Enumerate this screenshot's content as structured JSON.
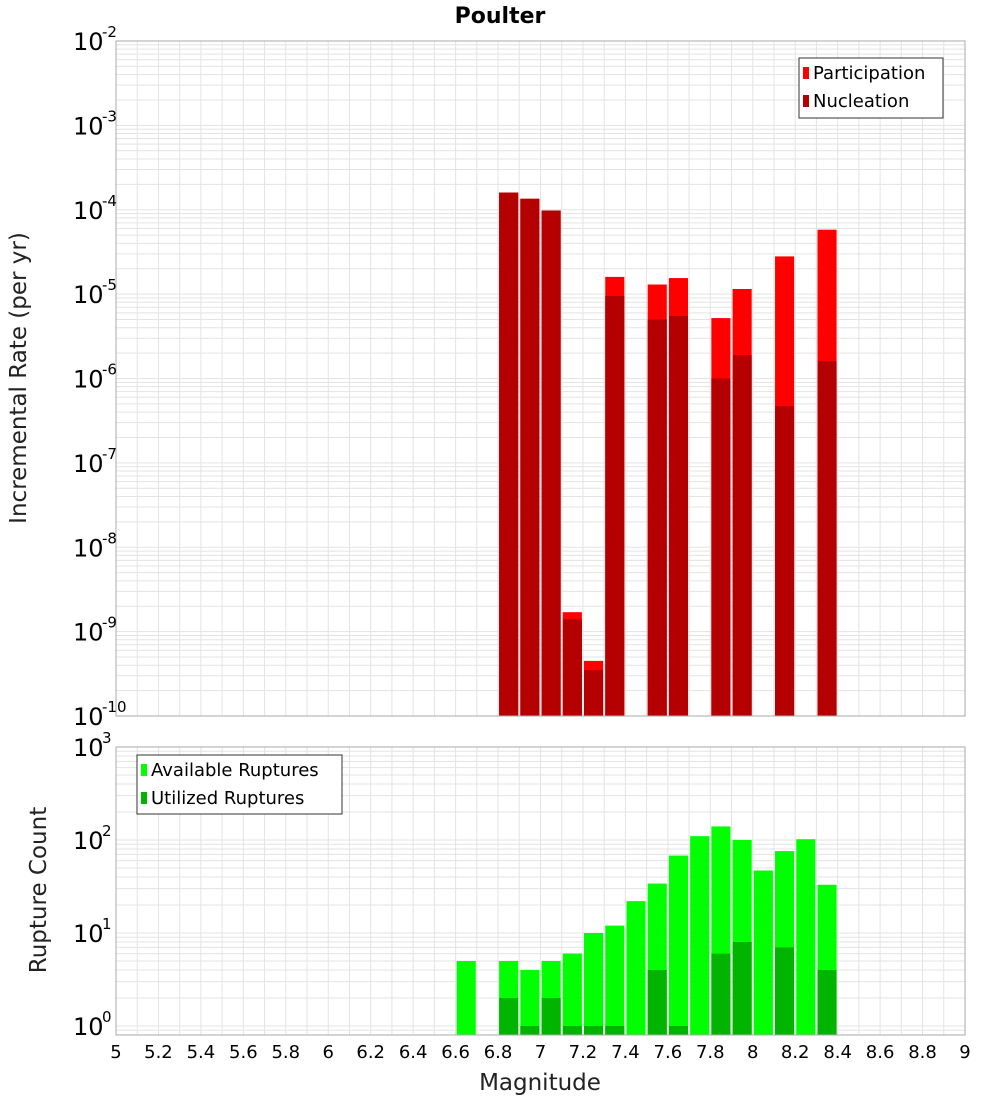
{
  "chart_data": [
    {
      "type": "bar",
      "title": "Poulter",
      "xlabel": "",
      "ylabel": "Incremental Rate (per yr)",
      "yscale": "log",
      "ylim": [
        1e-10,
        0.01
      ],
      "xlim": [
        5,
        9
      ],
      "grid": true,
      "legend_position": "top-right",
      "x": [
        6.85,
        6.95,
        7.05,
        7.15,
        7.25,
        7.35,
        7.55,
        7.65,
        7.85,
        7.95,
        8.15,
        8.35
      ],
      "series": [
        {
          "name": "Participation",
          "color": "#ff0000",
          "values": [
            0.00016,
            0.000135,
            9.8e-05,
            1.7e-09,
            4.5e-10,
            1.6e-05,
            1.3e-05,
            1.55e-05,
            5.2e-06,
            1.15e-05,
            2.8e-05,
            5.8e-05
          ]
        },
        {
          "name": "Nucleation",
          "color": "#b40000",
          "values": [
            0.00016,
            0.000135,
            9.8e-05,
            1.4e-09,
            3.5e-10,
            9.5e-06,
            5e-06,
            5.5e-06,
            1e-06,
            1.9e-06,
            4.7e-07,
            1.6e-06
          ]
        }
      ],
      "y_ticks": [
        {
          "base": "10",
          "exp": "-2",
          "value": 0.01
        },
        {
          "base": "10",
          "exp": "-3",
          "value": 0.001
        },
        {
          "base": "10",
          "exp": "-4",
          "value": 0.0001
        },
        {
          "base": "10",
          "exp": "-5",
          "value": 1e-05
        },
        {
          "base": "10",
          "exp": "-6",
          "value": 1e-06
        },
        {
          "base": "10",
          "exp": "-7",
          "value": 1e-07
        },
        {
          "base": "10",
          "exp": "-8",
          "value": 1e-08
        },
        {
          "base": "10",
          "exp": "-9",
          "value": 1e-09
        },
        {
          "base": "10",
          "exp": "-10",
          "value": 1e-10
        }
      ]
    },
    {
      "type": "bar",
      "title": "",
      "xlabel": "Magnitude",
      "ylabel": "Rupture Count",
      "yscale": "log",
      "ylim": [
        0.8,
        1000
      ],
      "xlim": [
        5,
        9
      ],
      "grid": true,
      "legend_position": "top-left",
      "x": [
        6.65,
        6.85,
        6.95,
        7.05,
        7.15,
        7.25,
        7.35,
        7.45,
        7.55,
        7.65,
        7.75,
        7.85,
        7.95,
        8.05,
        8.15,
        8.25,
        8.35
      ],
      "series": [
        {
          "name": "Available Ruptures",
          "color": "#00ff00",
          "values": [
            5,
            5,
            4,
            5,
            6,
            10,
            12,
            22,
            34,
            68,
            110,
            140,
            100,
            47,
            76,
            102,
            33
          ]
        },
        {
          "name": "Utilized Ruptures",
          "color": "#00b400",
          "values": [
            0,
            2,
            1,
            2,
            1,
            1,
            1,
            0,
            4,
            1,
            0,
            6,
            8,
            0,
            7,
            0,
            4
          ]
        }
      ],
      "x_ticks": [
        "5",
        "5.2",
        "5.4",
        "5.6",
        "5.8",
        "6",
        "6.2",
        "6.4",
        "6.6",
        "6.8",
        "7",
        "7.2",
        "7.4",
        "7.6",
        "7.8",
        "8",
        "8.2",
        "8.4",
        "8.6",
        "8.8",
        "9"
      ],
      "y_ticks": [
        {
          "base": "10",
          "exp": "3",
          "value": 1000
        },
        {
          "base": "10",
          "exp": "2",
          "value": 100
        },
        {
          "base": "10",
          "exp": "1",
          "value": 10
        },
        {
          "base": "10",
          "exp": "0",
          "value": 1
        }
      ]
    }
  ]
}
